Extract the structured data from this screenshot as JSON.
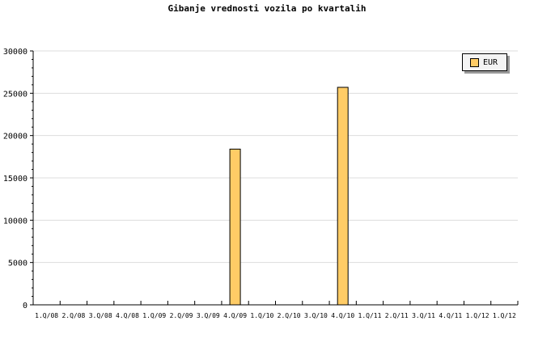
{
  "chart_data": {
    "type": "bar",
    "title": "Gibanje vrednosti vozila po kvartalih",
    "categories": [
      "1.Q/08",
      "2.Q/08",
      "3.Q/08",
      "4.Q/08",
      "1.Q/09",
      "2.Q/09",
      "3.Q/09",
      "4.Q/09",
      "1.Q/10",
      "2.Q/10",
      "3.Q/10",
      "4.Q/10",
      "1.Q/11",
      "2.Q/11",
      "3.Q/11",
      "4.Q/11",
      "1.Q/12",
      "1.Q/12"
    ],
    "series": [
      {
        "name": "EUR",
        "values": [
          0,
          0,
          0,
          0,
          0,
          0,
          0,
          18400,
          0,
          0,
          0,
          25700,
          0,
          0,
          0,
          0,
          0,
          0
        ],
        "color": "#ffcc66"
      }
    ],
    "ylim": [
      0,
      30000
    ],
    "yticks": [
      0,
      5000,
      10000,
      15000,
      20000,
      25000,
      30000
    ],
    "grid": true,
    "legend": "top-right",
    "xlabel": "",
    "ylabel": ""
  }
}
